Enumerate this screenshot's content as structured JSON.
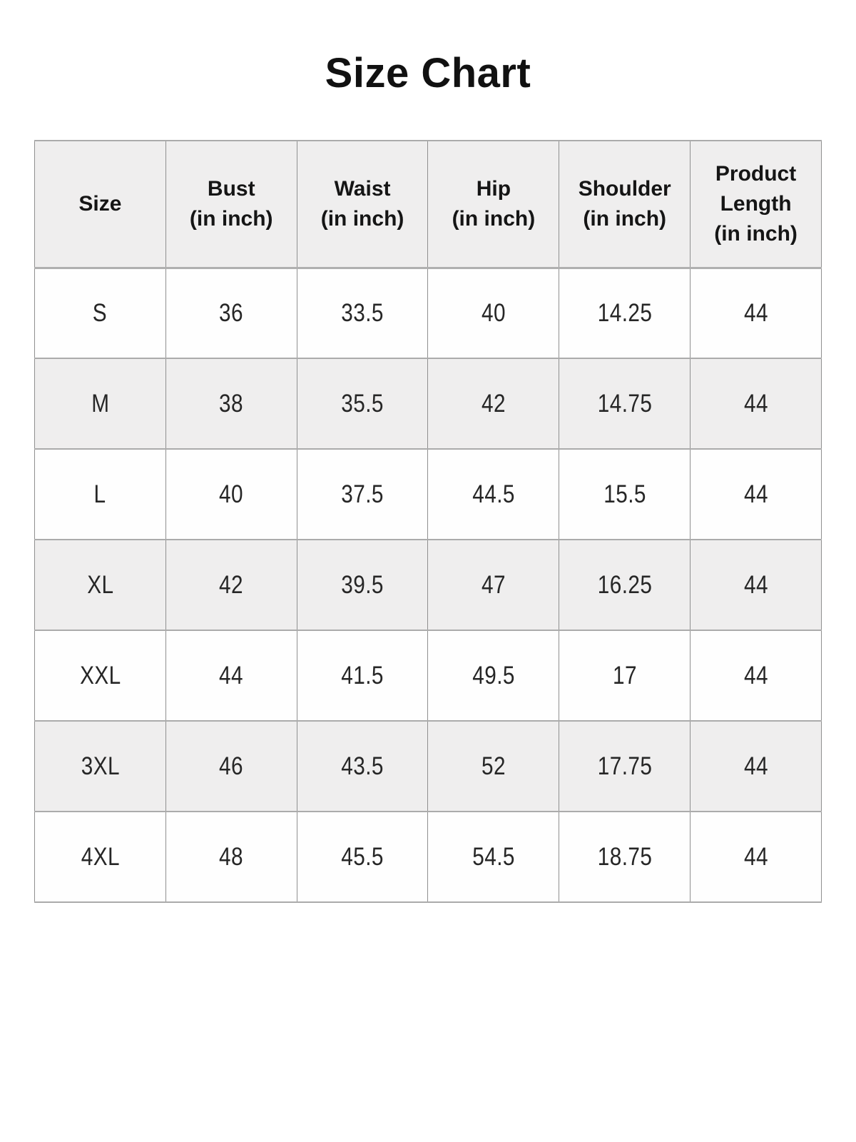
{
  "page": {
    "title": "Size Chart",
    "background_color": "#ffffff"
  },
  "table": {
    "header": {
      "bg_color": "#efeeee",
      "columns": [
        {
          "title": "Size",
          "unit": ""
        },
        {
          "title": "Bust",
          "unit": "(in inch)"
        },
        {
          "title": "Waist",
          "unit": "(in inch)"
        },
        {
          "title": "Hip",
          "unit": "(in inch)"
        },
        {
          "title": "Shoulder",
          "unit": "(in inch)"
        },
        {
          "title": "Product Length",
          "unit": "(in inch)"
        }
      ]
    },
    "rows": [
      {
        "size": "S",
        "bust": "36",
        "waist": "33.5",
        "hip": "40",
        "shoulder": "14.25",
        "product_length": "44"
      },
      {
        "size": "M",
        "bust": "38",
        "waist": "35.5",
        "hip": "42",
        "shoulder": "14.75",
        "product_length": "44"
      },
      {
        "size": "L",
        "bust": "40",
        "waist": "37.5",
        "hip": "44.5",
        "shoulder": "15.5",
        "product_length": "44"
      },
      {
        "size": "XL",
        "bust": "42",
        "waist": "39.5",
        "hip": "47",
        "shoulder": "16.25",
        "product_length": "44"
      },
      {
        "size": "XXL",
        "bust": "44",
        "waist": "41.5",
        "hip": "49.5",
        "shoulder": "17",
        "product_length": "44"
      },
      {
        "size": "3XL",
        "bust": "46",
        "waist": "43.5",
        "hip": "52",
        "shoulder": "17.75",
        "product_length": "44"
      },
      {
        "size": "4XL",
        "bust": "48",
        "waist": "45.5",
        "hip": "54.5",
        "shoulder": "18.75",
        "product_length": "44"
      }
    ],
    "colors": {
      "alt_row_bg": "#efeeee",
      "border": "#9b9b9b",
      "text": "#262626"
    }
  }
}
